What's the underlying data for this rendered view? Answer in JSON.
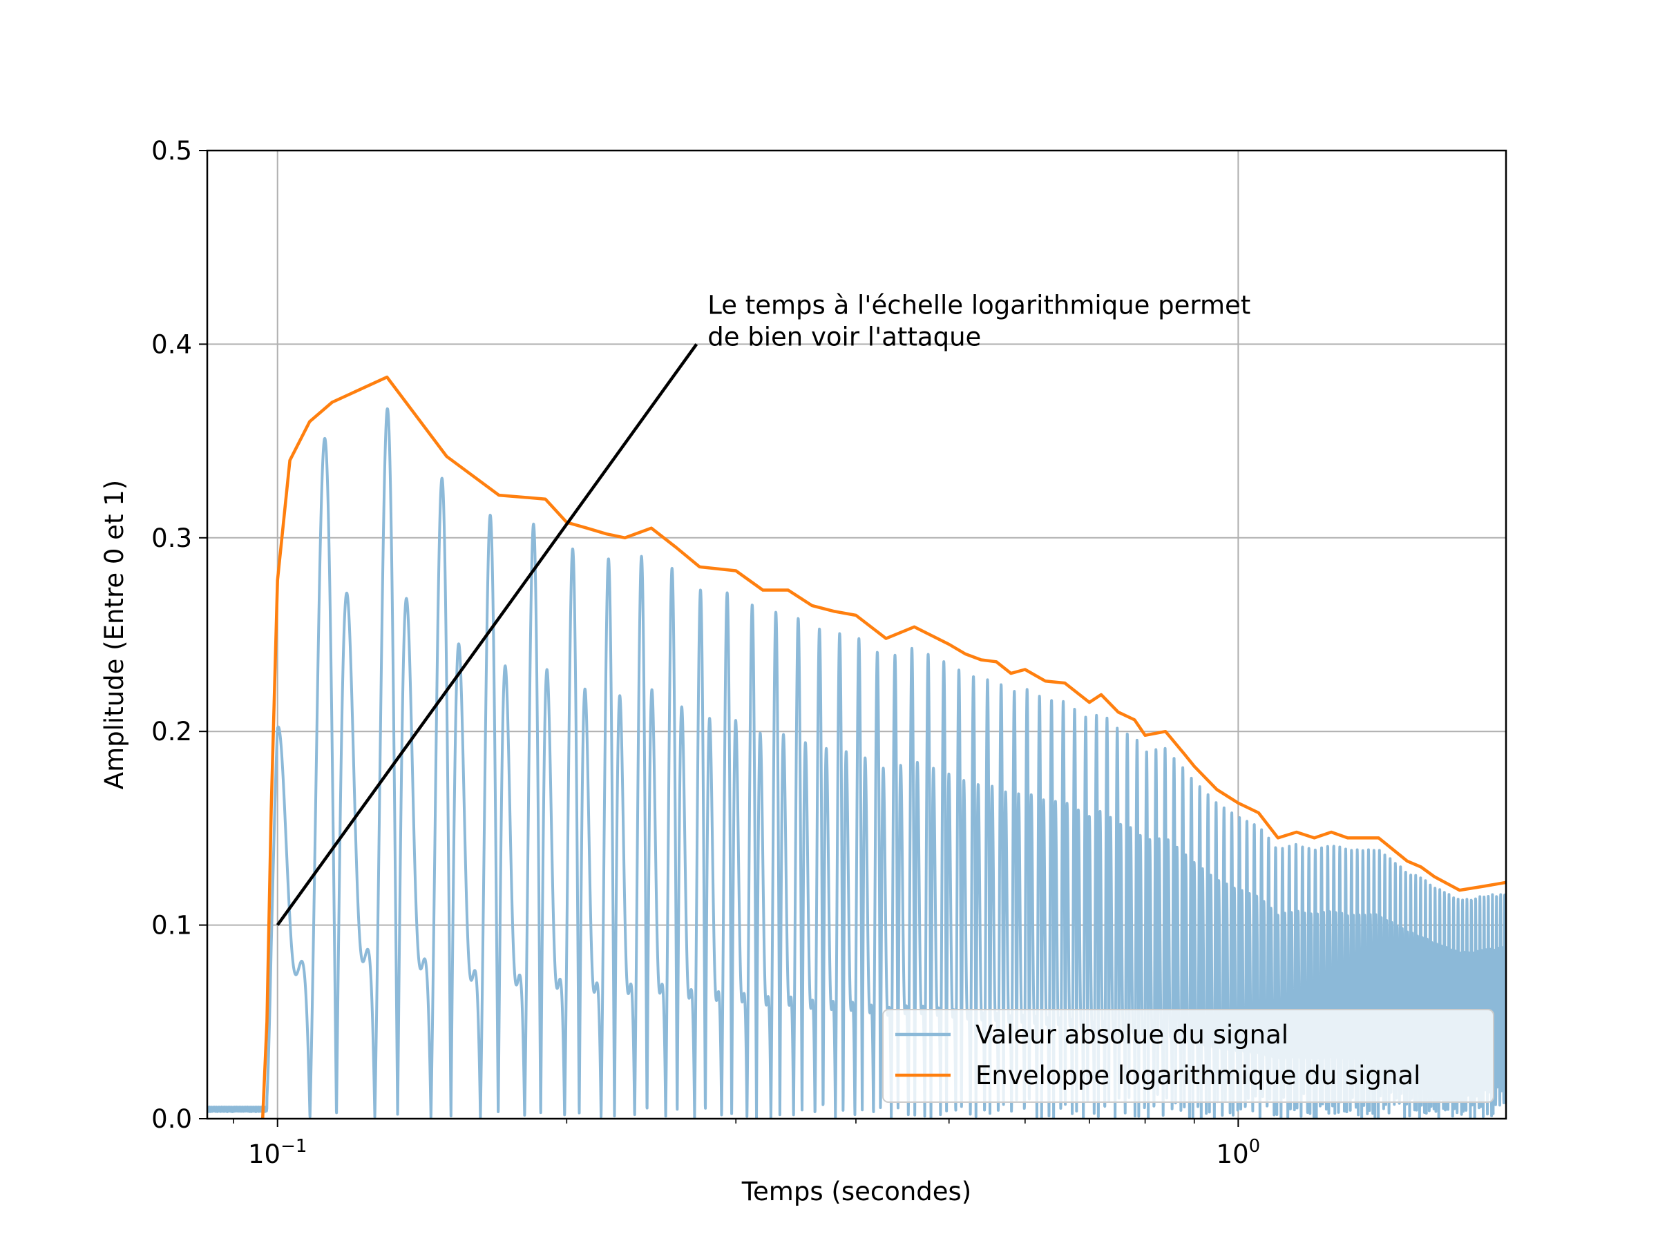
{
  "chart_data": {
    "type": "line",
    "xlabel": "Temps (secondes)",
    "ylabel": "Amplitude (Entre 0 et 1)",
    "xscale": "log",
    "xlim": [
      0.0845,
      1.9
    ],
    "ylim": [
      0,
      0.5
    ],
    "y_ticks": [
      {
        "value": 0.0,
        "label": "0.0"
      },
      {
        "value": 0.1,
        "label": "0.1"
      },
      {
        "value": 0.2,
        "label": "0.2"
      },
      {
        "value": 0.3,
        "label": "0.3"
      },
      {
        "value": 0.4,
        "label": "0.4"
      },
      {
        "value": 0.5,
        "label": "0.5"
      }
    ],
    "x_major_ticks": [
      {
        "value": 0.1,
        "base": "10",
        "exp": "−1"
      },
      {
        "value": 1.0,
        "base": "10",
        "exp": "0"
      }
    ],
    "x_minor_ticks": [
      0.09,
      0.2,
      0.3,
      0.4,
      0.5,
      0.6,
      0.7,
      0.8,
      0.9
    ],
    "grid": true,
    "legend_position": "lower-right",
    "series": [
      {
        "name": "Valeur absolue du signal",
        "color": "#8cb9d8",
        "kind": "oscillating-abs-signal",
        "onset": 0.0975,
        "f0": 55,
        "harmonic": 110,
        "harmonic_ratio": 0.5,
        "pre_onset_noise": 0.006
      },
      {
        "name": "Enveloppe logarithmique du signal",
        "color": "#ff7f0e",
        "x": [
          0.0965,
          0.0975,
          0.0985,
          0.1,
          0.103,
          0.108,
          0.114,
          0.13,
          0.15,
          0.17,
          0.19,
          0.2,
          0.21,
          0.22,
          0.23,
          0.245,
          0.26,
          0.275,
          0.3,
          0.32,
          0.34,
          0.36,
          0.38,
          0.4,
          0.43,
          0.46,
          0.5,
          0.52,
          0.54,
          0.56,
          0.58,
          0.6,
          0.63,
          0.66,
          0.7,
          0.72,
          0.75,
          0.78,
          0.8,
          0.84,
          0.88,
          0.9,
          0.95,
          1.0,
          1.05,
          1.1,
          1.15,
          1.2,
          1.25,
          1.3,
          1.4,
          1.5,
          1.55,
          1.6,
          1.7,
          1.8,
          1.9
        ],
        "y": [
          0.0,
          0.05,
          0.16,
          0.278,
          0.34,
          0.36,
          0.37,
          0.383,
          0.342,
          0.322,
          0.32,
          0.308,
          0.305,
          0.302,
          0.3,
          0.305,
          0.295,
          0.285,
          0.283,
          0.273,
          0.273,
          0.265,
          0.262,
          0.26,
          0.248,
          0.254,
          0.245,
          0.24,
          0.237,
          0.236,
          0.23,
          0.232,
          0.226,
          0.225,
          0.215,
          0.219,
          0.21,
          0.206,
          0.198,
          0.2,
          0.188,
          0.182,
          0.17,
          0.163,
          0.158,
          0.145,
          0.148,
          0.145,
          0.148,
          0.145,
          0.145,
          0.133,
          0.13,
          0.125,
          0.118,
          0.12,
          0.122
        ]
      }
    ],
    "annotation": {
      "lines": [
        " Le temps à l'échelle logarithmique permet",
        "de bien voir l'attaque"
      ],
      "text_at": {
        "x": 0.273,
        "y": 0.4
      },
      "point_at": {
        "x": 0.1,
        "y": 0.1
      },
      "color": "#000000"
    }
  }
}
